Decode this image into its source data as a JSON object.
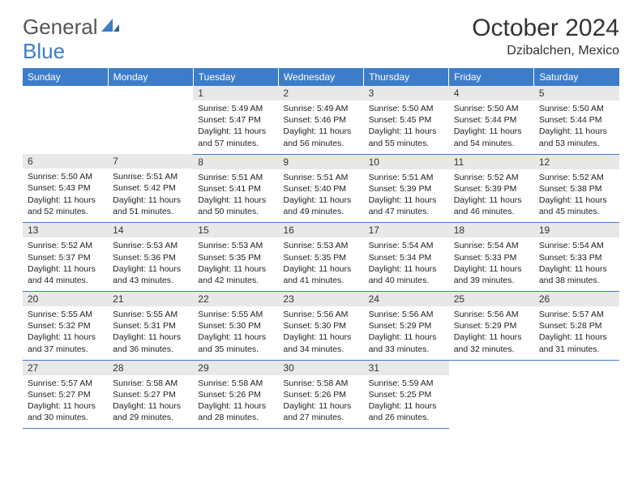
{
  "logo": {
    "text1": "General",
    "text2": "Blue"
  },
  "title": "October 2024",
  "location": "Dzibalchen, Mexico",
  "weekdays": [
    "Sunday",
    "Monday",
    "Tuesday",
    "Wednesday",
    "Thursday",
    "Friday",
    "Saturday"
  ],
  "colors": {
    "header_bg": "#3d7cc9",
    "header_fg": "#ffffff",
    "daynum_bg": "#e8e8e8",
    "border": "#3d7cc9"
  },
  "weeks": [
    [
      null,
      null,
      {
        "n": "1",
        "sr": "5:49 AM",
        "ss": "5:47 PM",
        "dl": "11 hours and 57 minutes."
      },
      {
        "n": "2",
        "sr": "5:49 AM",
        "ss": "5:46 PM",
        "dl": "11 hours and 56 minutes."
      },
      {
        "n": "3",
        "sr": "5:50 AM",
        "ss": "5:45 PM",
        "dl": "11 hours and 55 minutes."
      },
      {
        "n": "4",
        "sr": "5:50 AM",
        "ss": "5:44 PM",
        "dl": "11 hours and 54 minutes."
      },
      {
        "n": "5",
        "sr": "5:50 AM",
        "ss": "5:44 PM",
        "dl": "11 hours and 53 minutes."
      }
    ],
    [
      {
        "n": "6",
        "sr": "5:50 AM",
        "ss": "5:43 PM",
        "dl": "11 hours and 52 minutes."
      },
      {
        "n": "7",
        "sr": "5:51 AM",
        "ss": "5:42 PM",
        "dl": "11 hours and 51 minutes."
      },
      {
        "n": "8",
        "sr": "5:51 AM",
        "ss": "5:41 PM",
        "dl": "11 hours and 50 minutes."
      },
      {
        "n": "9",
        "sr": "5:51 AM",
        "ss": "5:40 PM",
        "dl": "11 hours and 49 minutes."
      },
      {
        "n": "10",
        "sr": "5:51 AM",
        "ss": "5:39 PM",
        "dl": "11 hours and 47 minutes."
      },
      {
        "n": "11",
        "sr": "5:52 AM",
        "ss": "5:39 PM",
        "dl": "11 hours and 46 minutes."
      },
      {
        "n": "12",
        "sr": "5:52 AM",
        "ss": "5:38 PM",
        "dl": "11 hours and 45 minutes."
      }
    ],
    [
      {
        "n": "13",
        "sr": "5:52 AM",
        "ss": "5:37 PM",
        "dl": "11 hours and 44 minutes."
      },
      {
        "n": "14",
        "sr": "5:53 AM",
        "ss": "5:36 PM",
        "dl": "11 hours and 43 minutes."
      },
      {
        "n": "15",
        "sr": "5:53 AM",
        "ss": "5:35 PM",
        "dl": "11 hours and 42 minutes."
      },
      {
        "n": "16",
        "sr": "5:53 AM",
        "ss": "5:35 PM",
        "dl": "11 hours and 41 minutes."
      },
      {
        "n": "17",
        "sr": "5:54 AM",
        "ss": "5:34 PM",
        "dl": "11 hours and 40 minutes."
      },
      {
        "n": "18",
        "sr": "5:54 AM",
        "ss": "5:33 PM",
        "dl": "11 hours and 39 minutes."
      },
      {
        "n": "19",
        "sr": "5:54 AM",
        "ss": "5:33 PM",
        "dl": "11 hours and 38 minutes."
      }
    ],
    [
      {
        "n": "20",
        "sr": "5:55 AM",
        "ss": "5:32 PM",
        "dl": "11 hours and 37 minutes."
      },
      {
        "n": "21",
        "sr": "5:55 AM",
        "ss": "5:31 PM",
        "dl": "11 hours and 36 minutes."
      },
      {
        "n": "22",
        "sr": "5:55 AM",
        "ss": "5:30 PM",
        "dl": "11 hours and 35 minutes."
      },
      {
        "n": "23",
        "sr": "5:56 AM",
        "ss": "5:30 PM",
        "dl": "11 hours and 34 minutes."
      },
      {
        "n": "24",
        "sr": "5:56 AM",
        "ss": "5:29 PM",
        "dl": "11 hours and 33 minutes."
      },
      {
        "n": "25",
        "sr": "5:56 AM",
        "ss": "5:29 PM",
        "dl": "11 hours and 32 minutes."
      },
      {
        "n": "26",
        "sr": "5:57 AM",
        "ss": "5:28 PM",
        "dl": "11 hours and 31 minutes."
      }
    ],
    [
      {
        "n": "27",
        "sr": "5:57 AM",
        "ss": "5:27 PM",
        "dl": "11 hours and 30 minutes."
      },
      {
        "n": "28",
        "sr": "5:58 AM",
        "ss": "5:27 PM",
        "dl": "11 hours and 29 minutes."
      },
      {
        "n": "29",
        "sr": "5:58 AM",
        "ss": "5:26 PM",
        "dl": "11 hours and 28 minutes."
      },
      {
        "n": "30",
        "sr": "5:58 AM",
        "ss": "5:26 PM",
        "dl": "11 hours and 27 minutes."
      },
      {
        "n": "31",
        "sr": "5:59 AM",
        "ss": "5:25 PM",
        "dl": "11 hours and 26 minutes."
      },
      null,
      null
    ]
  ],
  "labels": {
    "sunrise": "Sunrise:",
    "sunset": "Sunset:",
    "daylight": "Daylight:"
  }
}
